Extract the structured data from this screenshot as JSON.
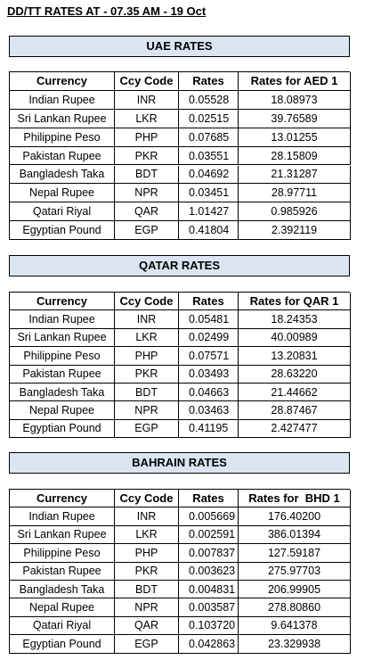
{
  "title": "DD/TT RATES AT - 07.35 AM - 19 Oct",
  "sections": [
    {
      "title": "UAE RATES",
      "columns": [
        "Currency",
        "Ccy Code",
        "Rates",
        "Rates for AED 1"
      ],
      "rows": [
        [
          "Indian Rupee",
          "INR",
          "0.05528",
          "18.08973"
        ],
        [
          "Sri Lankan Rupee",
          "LKR",
          "0.02515",
          "39.76589"
        ],
        [
          "Philippine Peso",
          "PHP",
          "0.07685",
          "13.01255"
        ],
        [
          "Pakistan Rupee",
          "PKR",
          "0.03551",
          "28.15809"
        ],
        [
          "Bangladesh Taka",
          "BDT",
          "0.04692",
          "21.31287"
        ],
        [
          "Nepal Rupee",
          "NPR",
          "0.03451",
          "28.97711"
        ],
        [
          "Qatari Riyal",
          "QAR",
          "1.01427",
          "0.985926"
        ],
        [
          "Egyptian Pound",
          "EGP",
          "0.41804",
          "2.392119"
        ]
      ]
    },
    {
      "title": "QATAR RATES",
      "columns": [
        "Currency",
        "Ccy Code",
        "Rates",
        "Rates for QAR 1"
      ],
      "rows": [
        [
          "Indian Rupee",
          "INR",
          "0.05481",
          "18.24353"
        ],
        [
          "Sri Lankan Rupee",
          "LKR",
          "0.02499",
          "40.00989"
        ],
        [
          "Philippine Peso",
          "PHP",
          "0.07571",
          "13.20831"
        ],
        [
          "Pakistan Rupee",
          "PKR",
          "0.03493",
          "28.63220"
        ],
        [
          "Bangladesh Taka",
          "BDT",
          "0.04663",
          "21.44662"
        ],
        [
          "Nepal Rupee",
          "NPR",
          "0.03463",
          "28.87467"
        ],
        [
          "Egyptian Pound",
          "EGP",
          "0.41195",
          "2.427477"
        ]
      ]
    },
    {
      "title": "BAHRAIN RATES",
      "columns": [
        "Currency",
        "Ccy Code",
        "Rates",
        "Rates for  BHD 1"
      ],
      "rows": [
        [
          "Indian Rupee",
          "INR",
          "0.005669",
          "176.40200"
        ],
        [
          "Sri Lankan Rupee",
          "LKR",
          "0.002591",
          "386.01394"
        ],
        [
          "Philippine Peso",
          "PHP",
          "0.007837",
          "127.59187"
        ],
        [
          "Pakistan Rupee",
          "PKR",
          "0.003623",
          "275.97703"
        ],
        [
          "Bangladesh Taka",
          "BDT",
          "0.004831",
          "206.99905"
        ],
        [
          "Nepal Rupee",
          "NPR",
          "0.003587",
          "278.80860"
        ],
        [
          "Qatari Riyal",
          "QAR",
          "0.103720",
          "9.641378"
        ],
        [
          "Egyptian Pound",
          "EGP",
          "0.042863",
          "23.329938"
        ]
      ]
    }
  ]
}
